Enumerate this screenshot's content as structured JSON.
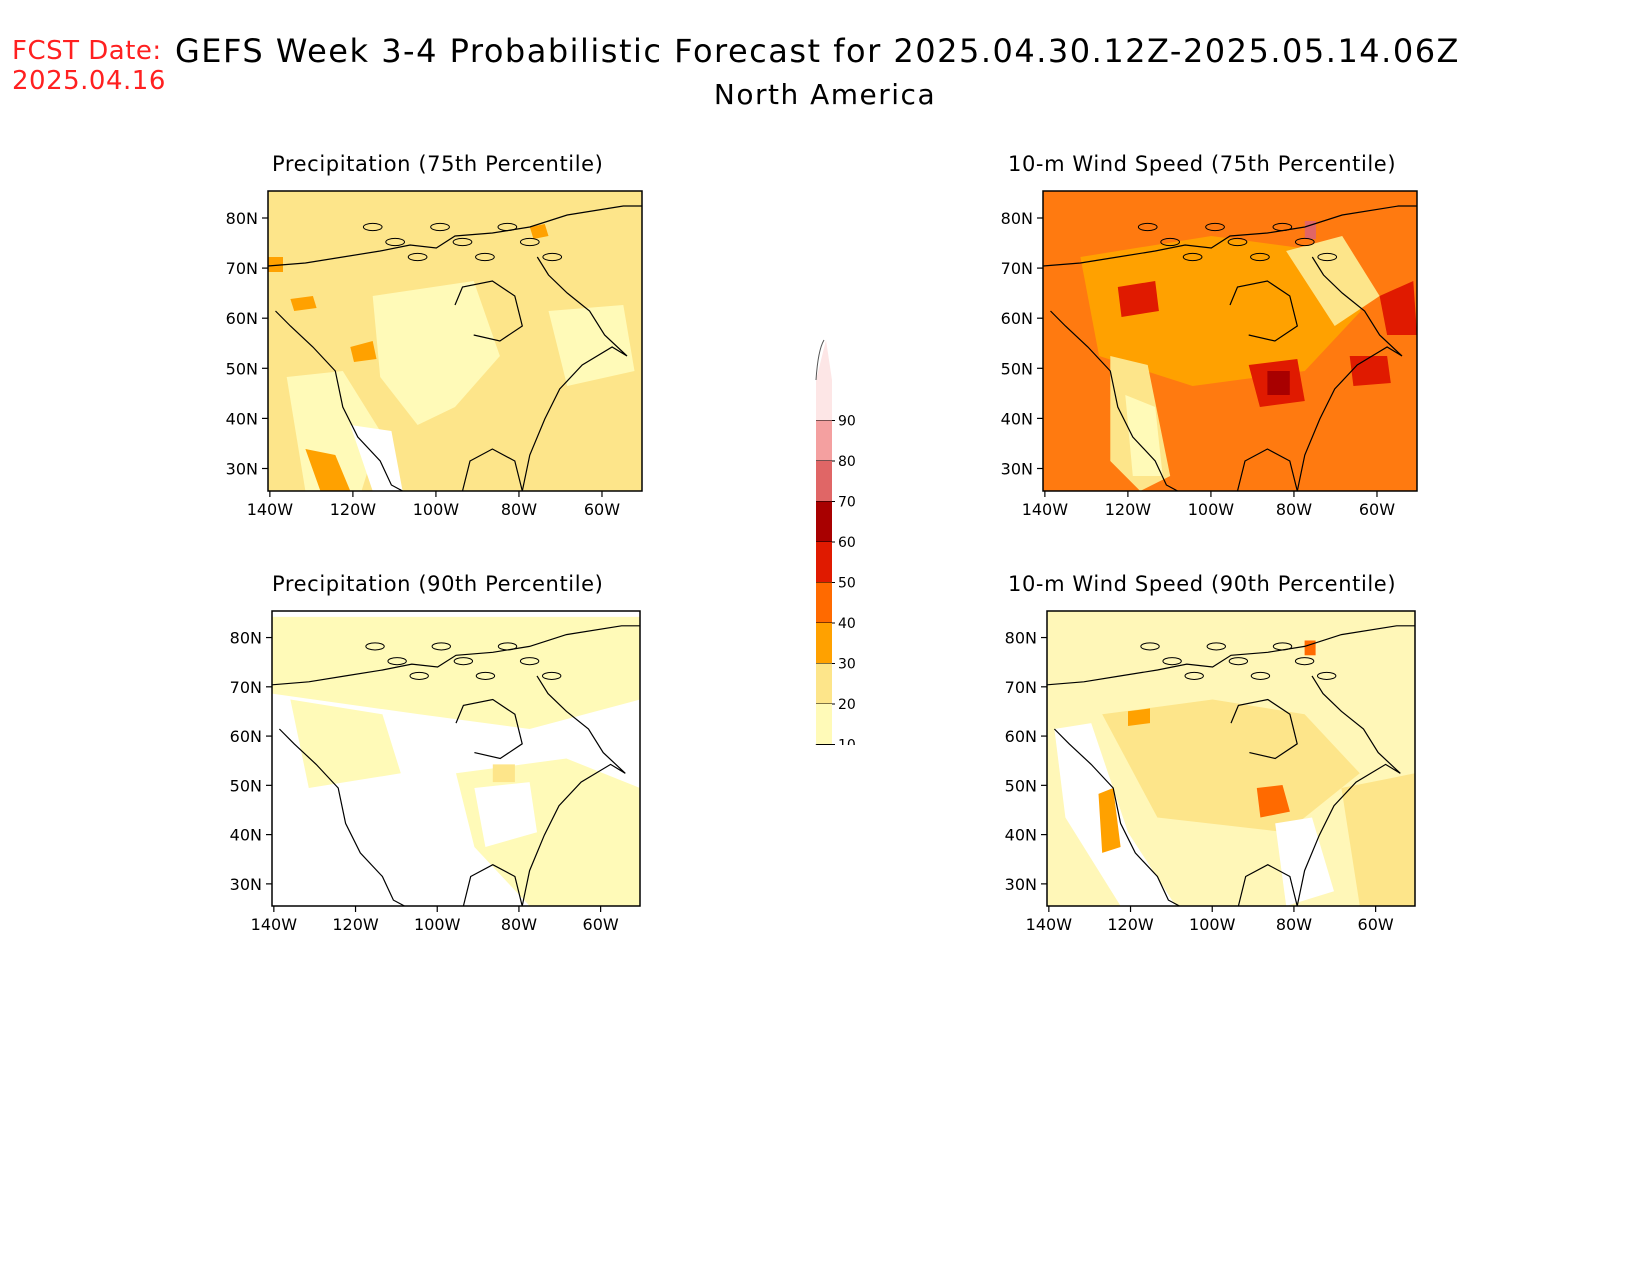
{
  "header": {
    "fcst_label": "FCST Date:",
    "fcst_date": "2025.04.16",
    "title": "GEFS Week 3-4 Probabilistic Forecast for 2025.04.30.12Z-2025.05.14.06Z",
    "subtitle": "North America"
  },
  "panels": [
    {
      "title": "Precipitation (75th Percentile)",
      "field": "precip75",
      "background": "#fde58a"
    },
    {
      "title": "10-m Wind Speed (75th Percentile)",
      "field": "wind75",
      "background": "#ff7a10"
    },
    {
      "title": "Precipitation (90th Percentile)",
      "field": "precip90",
      "background": "#ffffff"
    },
    {
      "title": "10-m Wind Speed (90th Percentile)",
      "field": "wind90",
      "background": "#fff7b8"
    }
  ],
  "axes": {
    "lat_labels": [
      "80N",
      "70N",
      "60N",
      "50N",
      "40N",
      "30N"
    ],
    "lon_labels": [
      "140W",
      "120W",
      "100W",
      "80W",
      "60W"
    ]
  },
  "colorbar": {
    "levels": [
      "90",
      "80",
      "70",
      "60",
      "50",
      "40",
      "30",
      "20",
      "10"
    ],
    "colors": [
      "#fde6e6",
      "#f4a0a0",
      "#e06666",
      "#a80000",
      "#e01a00",
      "#ff6a00",
      "#ffa100",
      "#fde58a",
      "#fffab8"
    ]
  }
}
